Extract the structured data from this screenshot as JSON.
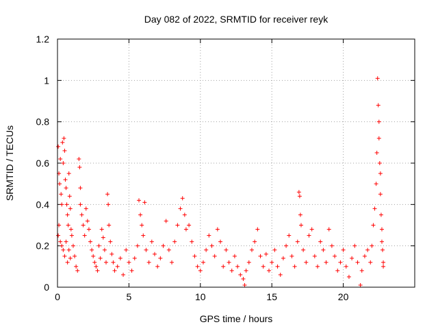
{
  "chart_data": {
    "type": "scatter",
    "title": "Day 082 of 2022, SRMTID for receiver reyk",
    "xlabel": "GPS time / hours",
    "ylabel": "SRMTID / TECUs",
    "xlim": [
      0,
      25
    ],
    "ylim": [
      0,
      1.2
    ],
    "xticks": [
      0,
      5,
      10,
      15,
      20
    ],
    "xtick_labels": [
      "0",
      "5",
      "10",
      "15",
      "20"
    ],
    "yticks": [
      0,
      0.2,
      0.4,
      0.6,
      0.8,
      1,
      1.2
    ],
    "ytick_labels": [
      "0",
      "0.2",
      "0.4",
      "0.6",
      "0.8",
      "1",
      "1.2"
    ],
    "grid": true,
    "marker": "plus",
    "marker_color": "#ff0000",
    "series": [
      {
        "name": "reyk",
        "points": [
          [
            0.05,
            0.68
          ],
          [
            0.1,
            0.55
          ],
          [
            0.15,
            0.5
          ],
          [
            0.2,
            0.62
          ],
          [
            0.25,
            0.45
          ],
          [
            0.3,
            0.4
          ],
          [
            0.35,
            0.7
          ],
          [
            0.4,
            0.6
          ],
          [
            0.45,
            0.72
          ],
          [
            0.5,
            0.66
          ],
          [
            0.55,
            0.52
          ],
          [
            0.6,
            0.48
          ],
          [
            0.65,
            0.4
          ],
          [
            0.7,
            0.35
          ],
          [
            0.75,
            0.3
          ],
          [
            0.8,
            0.55
          ],
          [
            0.85,
            0.44
          ],
          [
            0.9,
            0.38
          ],
          [
            0.95,
            0.28
          ],
          [
            1.0,
            0.25
          ],
          [
            0.05,
            0.25
          ],
          [
            0.1,
            0.3
          ],
          [
            0.2,
            0.22
          ],
          [
            0.3,
            0.2
          ],
          [
            0.4,
            0.18
          ],
          [
            0.5,
            0.15
          ],
          [
            0.6,
            0.22
          ],
          [
            0.7,
            0.12
          ],
          [
            0.8,
            0.18
          ],
          [
            0.9,
            0.14
          ],
          [
            1.1,
            0.2
          ],
          [
            1.2,
            0.15
          ],
          [
            1.3,
            0.1
          ],
          [
            1.4,
            0.08
          ],
          [
            1.5,
            0.62
          ],
          [
            1.55,
            0.58
          ],
          [
            1.6,
            0.48
          ],
          [
            1.6,
            0.4
          ],
          [
            1.7,
            0.35
          ],
          [
            1.8,
            0.3
          ],
          [
            1.9,
            0.25
          ],
          [
            2.0,
            0.38
          ],
          [
            2.1,
            0.32
          ],
          [
            2.2,
            0.28
          ],
          [
            2.3,
            0.22
          ],
          [
            2.4,
            0.18
          ],
          [
            2.5,
            0.15
          ],
          [
            2.6,
            0.12
          ],
          [
            2.7,
            0.1
          ],
          [
            2.8,
            0.08
          ],
          [
            2.9,
            0.2
          ],
          [
            3.0,
            0.14
          ],
          [
            3.1,
            0.28
          ],
          [
            3.2,
            0.24
          ],
          [
            3.3,
            0.18
          ],
          [
            3.4,
            0.12
          ],
          [
            3.5,
            0.45
          ],
          [
            3.55,
            0.4
          ],
          [
            3.6,
            0.3
          ],
          [
            3.7,
            0.22
          ],
          [
            3.8,
            0.16
          ],
          [
            3.9,
            0.12
          ],
          [
            4.0,
            0.08
          ],
          [
            4.2,
            0.1
          ],
          [
            4.4,
            0.14
          ],
          [
            4.6,
            0.06
          ],
          [
            4.8,
            0.18
          ],
          [
            5.0,
            0.12
          ],
          [
            5.2,
            0.08
          ],
          [
            5.4,
            0.14
          ],
          [
            5.6,
            0.2
          ],
          [
            5.7,
            0.42
          ],
          [
            5.8,
            0.35
          ],
          [
            5.9,
            0.3
          ],
          [
            6.0,
            0.25
          ],
          [
            6.1,
            0.41
          ],
          [
            6.2,
            0.18
          ],
          [
            6.4,
            0.12
          ],
          [
            6.6,
            0.22
          ],
          [
            6.8,
            0.16
          ],
          [
            7.0,
            0.1
          ],
          [
            7.2,
            0.14
          ],
          [
            7.4,
            0.2
          ],
          [
            7.6,
            0.32
          ],
          [
            7.8,
            0.18
          ],
          [
            8.0,
            0.12
          ],
          [
            8.2,
            0.22
          ],
          [
            8.4,
            0.3
          ],
          [
            8.6,
            0.38
          ],
          [
            8.75,
            0.43
          ],
          [
            8.9,
            0.35
          ],
          [
            9.0,
            0.28
          ],
          [
            9.2,
            0.3
          ],
          [
            9.4,
            0.22
          ],
          [
            9.6,
            0.15
          ],
          [
            9.8,
            0.1
          ],
          [
            10.0,
            0.08
          ],
          [
            10.2,
            0.12
          ],
          [
            10.4,
            0.18
          ],
          [
            10.6,
            0.25
          ],
          [
            10.8,
            0.2
          ],
          [
            11.0,
            0.15
          ],
          [
            11.2,
            0.28
          ],
          [
            11.4,
            0.22
          ],
          [
            11.6,
            0.1
          ],
          [
            11.8,
            0.18
          ],
          [
            12.0,
            0.12
          ],
          [
            12.2,
            0.08
          ],
          [
            12.4,
            0.15
          ],
          [
            12.6,
            0.1
          ],
          [
            12.8,
            0.06
          ],
          [
            13.0,
            0.04
          ],
          [
            13.1,
            0.01
          ],
          [
            13.2,
            0.08
          ],
          [
            13.4,
            0.12
          ],
          [
            13.6,
            0.18
          ],
          [
            13.8,
            0.22
          ],
          [
            14.0,
            0.28
          ],
          [
            14.2,
            0.15
          ],
          [
            14.4,
            0.1
          ],
          [
            14.6,
            0.16
          ],
          [
            14.8,
            0.08
          ],
          [
            15.0,
            0.12
          ],
          [
            15.2,
            0.18
          ],
          [
            15.4,
            0.1
          ],
          [
            15.6,
            0.06
          ],
          [
            15.8,
            0.14
          ],
          [
            16.0,
            0.2
          ],
          [
            16.2,
            0.25
          ],
          [
            16.4,
            0.15
          ],
          [
            16.6,
            0.1
          ],
          [
            16.8,
            0.22
          ],
          [
            16.9,
            0.46
          ],
          [
            16.95,
            0.44
          ],
          [
            17.0,
            0.35
          ],
          [
            17.05,
            0.3
          ],
          [
            17.2,
            0.18
          ],
          [
            17.4,
            0.12
          ],
          [
            17.6,
            0.25
          ],
          [
            17.8,
            0.28
          ],
          [
            18.0,
            0.15
          ],
          [
            18.2,
            0.1
          ],
          [
            18.4,
            0.22
          ],
          [
            18.6,
            0.18
          ],
          [
            18.8,
            0.12
          ],
          [
            19.0,
            0.28
          ],
          [
            19.2,
            0.2
          ],
          [
            19.4,
            0.15
          ],
          [
            19.6,
            0.08
          ],
          [
            19.8,
            0.12
          ],
          [
            20.0,
            0.18
          ],
          [
            20.2,
            0.1
          ],
          [
            20.4,
            0.05
          ],
          [
            20.6,
            0.14
          ],
          [
            20.8,
            0.2
          ],
          [
            21.0,
            0.12
          ],
          [
            21.2,
            0.01
          ],
          [
            21.3,
            0.08
          ],
          [
            21.5,
            0.15
          ],
          [
            21.7,
            0.18
          ],
          [
            21.9,
            0.12
          ],
          [
            22.0,
            0.2
          ],
          [
            22.1,
            0.3
          ],
          [
            22.2,
            0.38
          ],
          [
            22.3,
            0.5
          ],
          [
            22.35,
            0.65
          ],
          [
            22.4,
            1.01
          ],
          [
            22.45,
            0.88
          ],
          [
            22.5,
            0.8
          ],
          [
            22.5,
            0.72
          ],
          [
            22.55,
            0.6
          ],
          [
            22.6,
            0.45
          ],
          [
            22.6,
            0.55
          ],
          [
            22.65,
            0.35
          ],
          [
            22.7,
            0.28
          ],
          [
            22.7,
            0.22
          ],
          [
            22.75,
            0.18
          ],
          [
            22.8,
            0.12
          ],
          [
            22.8,
            0.1
          ]
        ]
      }
    ]
  }
}
